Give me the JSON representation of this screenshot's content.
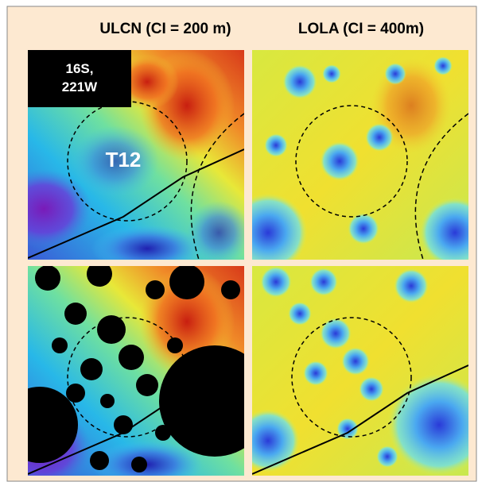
{
  "header": {
    "left": "ULCN (CI = 200 m)",
    "right": "LOLA (CI = 400m)"
  },
  "panels": {
    "top_left": {
      "location_lines": [
        "16S,",
        "221W"
      ],
      "feature": "T12"
    }
  }
}
